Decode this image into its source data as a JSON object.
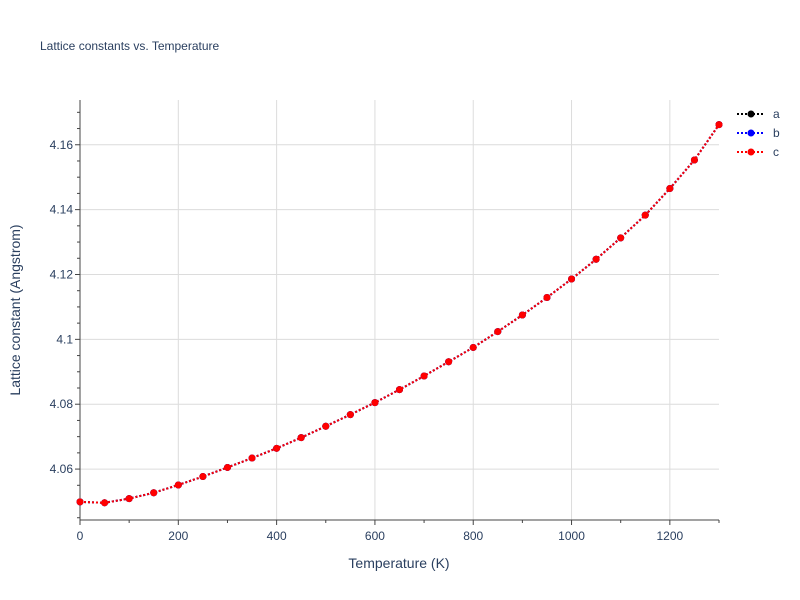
{
  "chart_data": {
    "type": "line",
    "title": "Lattice constants vs. Temperature",
    "xlabel": "Temperature (K)",
    "ylabel": "Lattice constant (Angstrom)",
    "xlim": [
      0,
      1300
    ],
    "ylim": [
      4.0443,
      4.1738
    ],
    "x_ticks": [
      0,
      200,
      400,
      600,
      800,
      1000,
      1200
    ],
    "x_tick_labels": [
      "0",
      "200",
      "400",
      "600",
      "800",
      "1000",
      "1200"
    ],
    "y_ticks": [
      4.06,
      4.08,
      4.1,
      4.12,
      4.14,
      4.16
    ],
    "y_tick_labels": [
      "4.06",
      "4.08",
      "4.1",
      "4.12",
      "4.14",
      "4.16"
    ],
    "grid": true,
    "legend_position": "top-right",
    "x": [
      0,
      50,
      100,
      150,
      200,
      250,
      300,
      350,
      400,
      450,
      500,
      550,
      600,
      650,
      700,
      750,
      800,
      850,
      900,
      950,
      1000,
      1050,
      1100,
      1150,
      1200,
      1250,
      1300
    ],
    "series": [
      {
        "name": "a",
        "color": "#000000",
        "values": [
          4.0499,
          4.0496,
          4.0509,
          4.0527,
          4.0551,
          4.0577,
          4.0605,
          4.0634,
          4.0664,
          4.0697,
          4.0732,
          4.0768,
          4.0805,
          4.0845,
          4.0887,
          4.0931,
          4.0975,
          4.1024,
          4.1075,
          4.1129,
          4.1186,
          4.1247,
          4.1313,
          4.1383,
          4.1465,
          4.1553,
          4.1662
        ]
      },
      {
        "name": "b",
        "color": "#0000ff",
        "values": [
          4.0499,
          4.0496,
          4.0509,
          4.0527,
          4.0551,
          4.0577,
          4.0605,
          4.0634,
          4.0664,
          4.0697,
          4.0732,
          4.0768,
          4.0805,
          4.0845,
          4.0887,
          4.0931,
          4.0975,
          4.1024,
          4.1075,
          4.1129,
          4.1186,
          4.1247,
          4.1313,
          4.1383,
          4.1465,
          4.1553,
          4.1662
        ]
      },
      {
        "name": "c",
        "color": "#ff0000",
        "values": [
          4.0499,
          4.0496,
          4.0509,
          4.0527,
          4.0551,
          4.0577,
          4.0605,
          4.0634,
          4.0664,
          4.0697,
          4.0732,
          4.0768,
          4.0805,
          4.0845,
          4.0887,
          4.0931,
          4.0975,
          4.1024,
          4.1075,
          4.1129,
          4.1186,
          4.1247,
          4.1313,
          4.1383,
          4.1465,
          4.1553,
          4.1662
        ]
      }
    ]
  }
}
